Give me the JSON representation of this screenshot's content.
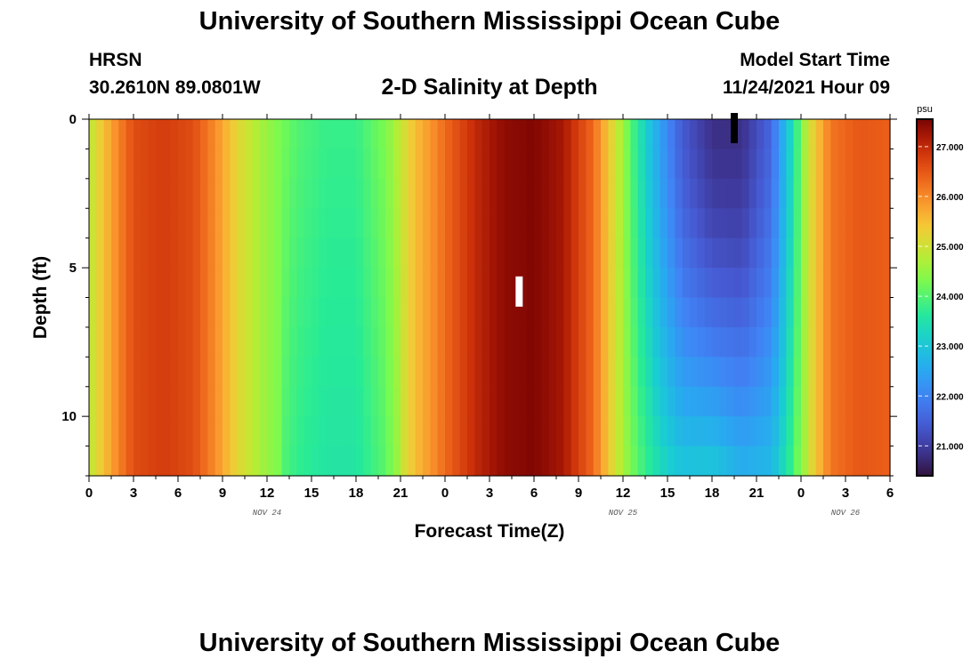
{
  "header": {
    "title": "University of Southern Mississippi Ocean Cube",
    "station": "HRSN",
    "coords": "30.2610N  89.0801W",
    "subtitle": "2-D Salinity at Depth",
    "start_label": "Model Start Time",
    "start_value": "11/24/2021 Hour 09"
  },
  "footer": {
    "title": "University of Southern Mississippi Ocean Cube"
  },
  "chart_data": {
    "type": "heatmap",
    "xlabel": "Forecast Time(Z)",
    "ylabel": "Depth (ft)",
    "x_range_hours": [
      0,
      54
    ],
    "y_range_ft": [
      0,
      12
    ],
    "y_inverted": true,
    "x_tick_labels": [
      "0",
      "3",
      "6",
      "9",
      "12",
      "15",
      "18",
      "21",
      "0",
      "3",
      "6",
      "9",
      "12",
      "15",
      "18",
      "21",
      "0",
      "3",
      "6"
    ],
    "x_tick_hours": [
      0,
      3,
      6,
      9,
      12,
      15,
      18,
      21,
      24,
      27,
      30,
      33,
      36,
      39,
      42,
      45,
      48,
      51,
      54
    ],
    "date_labels": [
      {
        "label": "NOV 24",
        "hour": 12
      },
      {
        "label": "NOV 25",
        "hour": 36
      },
      {
        "label": "NOV 26",
        "hour": 51
      }
    ],
    "y_tick_labels": [
      "0",
      "5",
      "10"
    ],
    "y_tick_values": [
      0,
      5,
      10
    ],
    "colorbar": {
      "unit": "psu",
      "min": 20.4,
      "max": 27.55,
      "tick_labels": [
        "21.000",
        "22.000",
        "23.000",
        "24.000",
        "25.000",
        "26.000",
        "27.000"
      ],
      "tick_values": [
        21,
        22,
        23,
        24,
        25,
        26,
        27
      ]
    },
    "surface_salinity_profile": [
      {
        "hour": 0,
        "value": 24.8
      },
      {
        "hour": 1.5,
        "value": 25.8
      },
      {
        "hour": 3,
        "value": 26.6
      },
      {
        "hour": 5,
        "value": 26.8
      },
      {
        "hour": 7,
        "value": 26.6
      },
      {
        "hour": 8.5,
        "value": 26.0
      },
      {
        "hour": 10,
        "value": 25.2
      },
      {
        "hour": 12,
        "value": 24.5
      },
      {
        "hour": 14,
        "value": 24.0
      },
      {
        "hour": 16,
        "value": 23.8
      },
      {
        "hour": 18,
        "value": 23.8
      },
      {
        "hour": 20,
        "value": 24.3
      },
      {
        "hour": 22,
        "value": 25.5
      },
      {
        "hour": 24,
        "value": 26.3
      },
      {
        "hour": 26,
        "value": 27.0
      },
      {
        "hour": 28,
        "value": 27.4
      },
      {
        "hour": 30,
        "value": 27.5
      },
      {
        "hour": 32,
        "value": 27.2
      },
      {
        "hour": 34,
        "value": 26.3
      },
      {
        "hour": 35.5,
        "value": 25.0
      },
      {
        "hour": 37,
        "value": 23.6
      },
      {
        "hour": 38.5,
        "value": 22.4
      },
      {
        "hour": 40,
        "value": 21.4
      },
      {
        "hour": 42,
        "value": 20.8
      },
      {
        "hour": 44,
        "value": 20.8
      },
      {
        "hour": 46,
        "value": 21.6
      },
      {
        "hour": 47.5,
        "value": 23.5
      },
      {
        "hour": 48.5,
        "value": 25.0
      },
      {
        "hour": 50,
        "value": 26.2
      },
      {
        "hour": 52,
        "value": 26.5
      },
      {
        "hour": 54,
        "value": 26.4
      }
    ],
    "bottom_mixing": {
      "low_salinity_reduction_bottom_fraction": 0.55,
      "low_salinity_window_hours": [
        34,
        48
      ],
      "low_salinity_peak_hour": 42
    },
    "markers": [
      {
        "hour": 29,
        "depth_ft": 5.8,
        "color": "#ffffff"
      },
      {
        "hour": 43.5,
        "depth_ft": 0.3,
        "color": "#000000"
      }
    ]
  }
}
